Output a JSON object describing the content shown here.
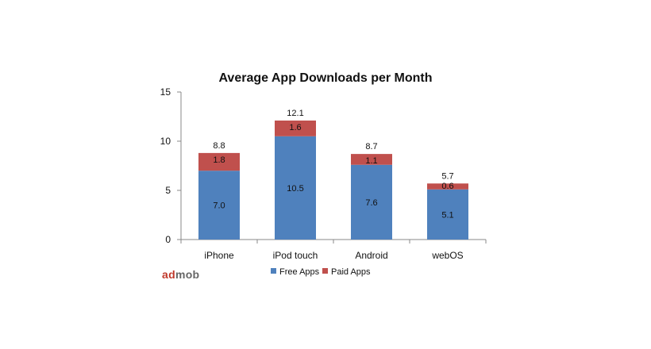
{
  "chart_data": {
    "type": "bar",
    "stacked": true,
    "title": "Average App Downloads per Month",
    "categories": [
      "iPhone",
      "iPod touch",
      "Android",
      "webOS"
    ],
    "series": [
      {
        "name": "Free Apps",
        "color": "#4f81bd",
        "values": [
          7.0,
          10.5,
          7.6,
          5.1
        ]
      },
      {
        "name": "Paid Apps",
        "color": "#c0504d",
        "values": [
          1.8,
          1.6,
          1.1,
          0.6
        ]
      }
    ],
    "totals": [
      8.8,
      12.1,
      8.7,
      5.7
    ],
    "ylim": [
      0,
      15
    ],
    "yticks": [
      0,
      5,
      10,
      15
    ],
    "grid": false,
    "legend": "bottom"
  },
  "brand": {
    "prefix": "ad",
    "suffix": "mob"
  }
}
